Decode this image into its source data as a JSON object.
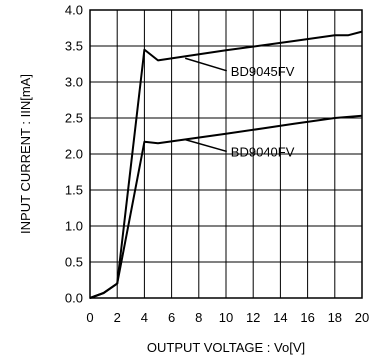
{
  "chart_data": {
    "type": "line",
    "xlabel": "OUTPUT VOLTAGE : Vo[V]",
    "ylabel": "INPUT CURRENT : IIN[mA]",
    "xlim": [
      0,
      20
    ],
    "ylim": [
      0.0,
      4.0
    ],
    "x_ticks": [
      "0",
      "2",
      "4",
      "6",
      "8",
      "10",
      "12",
      "14",
      "16",
      "18",
      "20"
    ],
    "y_ticks": [
      "0.0",
      "0.5",
      "1.0",
      "1.5",
      "2.0",
      "2.5",
      "3.0",
      "3.5",
      "4.0"
    ],
    "grid": true,
    "series": [
      {
        "name": "BD9045FV",
        "x": [
          0,
          1,
          2,
          4,
          5,
          10,
          15,
          18,
          19,
          20
        ],
        "y": [
          0.0,
          0.07,
          0.2,
          3.45,
          3.3,
          3.44,
          3.57,
          3.65,
          3.65,
          3.7
        ]
      },
      {
        "name": "BD9040FV",
        "x": [
          0,
          1,
          2,
          4,
          5,
          10,
          15,
          18,
          20
        ],
        "y": [
          0.0,
          0.07,
          0.2,
          2.17,
          2.15,
          2.28,
          2.42,
          2.5,
          2.53
        ]
      }
    ],
    "annotations": [
      {
        "text": "BD9045FV",
        "series": 0,
        "point_x": 7.0,
        "point_y": 3.33,
        "label_x": 10.5,
        "label_y": 3.1
      },
      {
        "text": "BD9040FV",
        "series": 1,
        "point_x": 7.0,
        "point_y": 2.2,
        "label_x": 10.5,
        "label_y": 1.98
      }
    ]
  }
}
